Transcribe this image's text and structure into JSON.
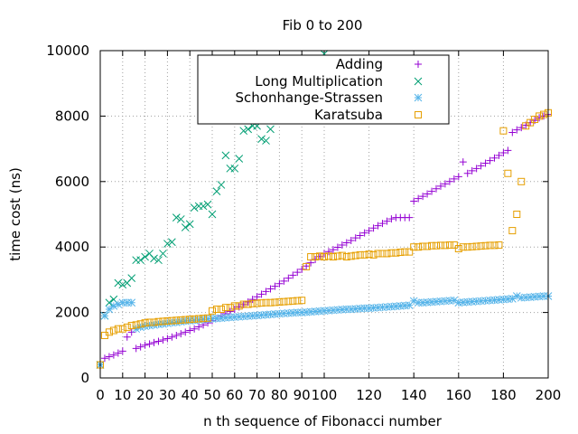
{
  "chart_data": {
    "type": "scatter",
    "title": "Fib 0 to 200",
    "xlabel": "n th sequence of Fibonacci number",
    "ylabel": "time cost (ns)",
    "xlim": [
      0,
      200
    ],
    "ylim": [
      0,
      10000
    ],
    "x_ticks": [
      0,
      10,
      20,
      30,
      40,
      50,
      60,
      70,
      80,
      90,
      100,
      120,
      140,
      160,
      180,
      200
    ],
    "y_ticks": [
      0,
      2000,
      4000,
      6000,
      8000,
      10000
    ],
    "grid": true,
    "legend_position": "top-right",
    "series": [
      {
        "name": "Adding",
        "marker": "plus",
        "color": "#9400d3",
        "x": [
          0,
          2,
          4,
          6,
          8,
          10,
          12,
          14,
          16,
          18,
          20,
          22,
          24,
          26,
          28,
          30,
          32,
          34,
          36,
          38,
          40,
          42,
          44,
          46,
          48,
          50,
          52,
          54,
          56,
          58,
          60,
          62,
          64,
          66,
          68,
          70,
          72,
          74,
          76,
          78,
          80,
          82,
          84,
          86,
          88,
          90,
          92,
          94,
          96,
          98,
          100,
          102,
          104,
          106,
          108,
          110,
          112,
          114,
          116,
          118,
          120,
          122,
          124,
          126,
          128,
          130,
          132,
          134,
          136,
          138,
          140,
          142,
          144,
          146,
          148,
          150,
          152,
          154,
          156,
          158,
          160,
          162,
          164,
          166,
          168,
          170,
          172,
          174,
          176,
          178,
          180,
          182,
          184,
          186,
          188,
          190,
          192,
          194,
          196,
          198,
          200
        ],
        "y": [
          400,
          600,
          650,
          700,
          760,
          820,
          1250,
          1400,
          900,
          950,
          1000,
          1040,
          1080,
          1120,
          1160,
          1200,
          1250,
          1300,
          1350,
          1400,
          1450,
          1500,
          1560,
          1620,
          1680,
          1750,
          1820,
          1890,
          1960,
          2030,
          2100,
          2170,
          2240,
          2320,
          2400,
          2480,
          2560,
          2640,
          2720,
          2800,
          2880,
          2960,
          3050,
          3140,
          3230,
          3320,
          3420,
          3520,
          3620,
          3710,
          3800,
          3860,
          3920,
          3990,
          4060,
          4130,
          4200,
          4280,
          4350,
          4430,
          4500,
          4580,
          4650,
          4720,
          4790,
          4860,
          4900,
          4900,
          4900,
          4900,
          5400,
          5480,
          5550,
          5620,
          5700,
          5780,
          5860,
          5930,
          6000,
          6080,
          6150,
          6600,
          6250,
          6330,
          6400,
          6480,
          6560,
          6640,
          6720,
          6800,
          6880,
          6950,
          7500,
          7580,
          7650,
          7720,
          7800,
          7870,
          7950,
          8000,
          8050
        ]
      },
      {
        "name": "Long Multiplication",
        "marker": "cross",
        "color": "#009e73",
        "x": [
          0,
          2,
          4,
          6,
          8,
          10,
          12,
          14,
          16,
          18,
          20,
          22,
          24,
          26,
          28,
          30,
          32,
          34,
          36,
          38,
          40,
          42,
          44,
          46,
          48,
          50,
          52,
          54,
          56,
          58,
          60,
          62,
          64,
          66,
          68,
          70,
          72,
          74,
          76,
          78,
          80,
          82,
          84,
          86,
          88,
          90,
          92,
          94,
          96,
          98,
          100
        ],
        "y": [
          400,
          1900,
          2300,
          2400,
          2900,
          2850,
          2900,
          3050,
          3600,
          3600,
          3700,
          3800,
          3650,
          3600,
          3800,
          4100,
          4150,
          4900,
          4850,
          4600,
          4700,
          5200,
          5250,
          5250,
          5300,
          5000,
          5700,
          5900,
          6800,
          6400,
          6400,
          6700,
          7550,
          7600,
          7700,
          7700,
          7300,
          7250,
          7600,
          8000,
          8700,
          8300,
          8400,
          8600,
          8800,
          9000,
          9100,
          9300,
          9500,
          9700,
          9900
        ]
      },
      {
        "name": "Schonhange-Strassen",
        "marker": "star",
        "color": "#56b4e9",
        "x": [
          0,
          2,
          4,
          6,
          8,
          10,
          12,
          14,
          16,
          18,
          20,
          22,
          24,
          26,
          28,
          30,
          32,
          34,
          36,
          38,
          40,
          42,
          44,
          46,
          48,
          50,
          52,
          54,
          56,
          58,
          60,
          62,
          64,
          66,
          68,
          70,
          72,
          74,
          76,
          78,
          80,
          82,
          84,
          86,
          88,
          90,
          92,
          94,
          96,
          98,
          100,
          102,
          104,
          106,
          108,
          110,
          112,
          114,
          116,
          118,
          120,
          122,
          124,
          126,
          128,
          130,
          132,
          134,
          136,
          138,
          140,
          142,
          144,
          146,
          148,
          150,
          152,
          154,
          156,
          158,
          160,
          162,
          164,
          166,
          168,
          170,
          172,
          174,
          176,
          178,
          180,
          182,
          184,
          186,
          188,
          190,
          192,
          194,
          196,
          198,
          200
        ],
        "y": [
          400,
          1900,
          2100,
          2200,
          2250,
          2300,
          2300,
          2300,
          1500,
          1550,
          1580,
          1600,
          1620,
          1640,
          1650,
          1670,
          1690,
          1700,
          1720,
          1740,
          1750,
          1760,
          1770,
          1790,
          1800,
          1810,
          1820,
          1830,
          1840,
          1850,
          1860,
          1870,
          1880,
          1890,
          1900,
          1910,
          1920,
          1930,
          1940,
          1950,
          1960,
          1970,
          1980,
          1990,
          2000,
          2000,
          2010,
          2020,
          2030,
          2040,
          2050,
          2060,
          2070,
          2080,
          2090,
          2100,
          2100,
          2110,
          2120,
          2130,
          2130,
          2140,
          2150,
          2160,
          2170,
          2180,
          2190,
          2200,
          2210,
          2220,
          2350,
          2300,
          2300,
          2310,
          2320,
          2330,
          2340,
          2350,
          2360,
          2370,
          2300,
          2310,
          2320,
          2330,
          2340,
          2350,
          2360,
          2370,
          2380,
          2390,
          2400,
          2410,
          2420,
          2500,
          2450,
          2460,
          2470,
          2480,
          2490,
          2500,
          2500
        ]
      },
      {
        "name": "Karatsuba",
        "marker": "square",
        "color": "#e69f00",
        "x": [
          0,
          2,
          4,
          6,
          8,
          10,
          12,
          14,
          16,
          18,
          20,
          22,
          24,
          26,
          28,
          30,
          32,
          34,
          36,
          38,
          40,
          42,
          44,
          46,
          48,
          50,
          52,
          54,
          56,
          58,
          60,
          62,
          64,
          66,
          68,
          70,
          72,
          74,
          76,
          78,
          80,
          82,
          84,
          86,
          88,
          90,
          92,
          94,
          96,
          98,
          100,
          102,
          104,
          106,
          108,
          110,
          112,
          114,
          116,
          118,
          120,
          122,
          124,
          126,
          128,
          130,
          132,
          134,
          136,
          138,
          140,
          142,
          144,
          146,
          148,
          150,
          152,
          154,
          156,
          158,
          160,
          162,
          164,
          166,
          168,
          170,
          172,
          174,
          176,
          178,
          180,
          182,
          184,
          186,
          188,
          190,
          192,
          194,
          196,
          198,
          200
        ],
        "y": [
          400,
          1300,
          1400,
          1450,
          1500,
          1500,
          1550,
          1600,
          1620,
          1650,
          1680,
          1700,
          1700,
          1720,
          1730,
          1740,
          1750,
          1760,
          1770,
          1780,
          1790,
          1800,
          1810,
          1820,
          1830,
          2050,
          2100,
          2100,
          2150,
          2150,
          2200,
          2200,
          2250,
          2250,
          2270,
          2280,
          2290,
          2300,
          2300,
          2310,
          2320,
          2330,
          2340,
          2350,
          2360,
          2370,
          3400,
          3700,
          3700,
          3720,
          3700,
          3720,
          3700,
          3720,
          3740,
          3700,
          3720,
          3740,
          3760,
          3760,
          3780,
          3760,
          3800,
          3800,
          3800,
          3820,
          3820,
          3840,
          3850,
          3850,
          4000,
          4000,
          4020,
          4020,
          4040,
          4040,
          4050,
          4050,
          4060,
          4060,
          3950,
          4000,
          4000,
          4010,
          4020,
          4030,
          4040,
          4050,
          4050,
          4060,
          7550,
          6250,
          4500,
          5000,
          6000,
          7700,
          7800,
          7900,
          8000,
          8050,
          8100
        ]
      }
    ]
  }
}
